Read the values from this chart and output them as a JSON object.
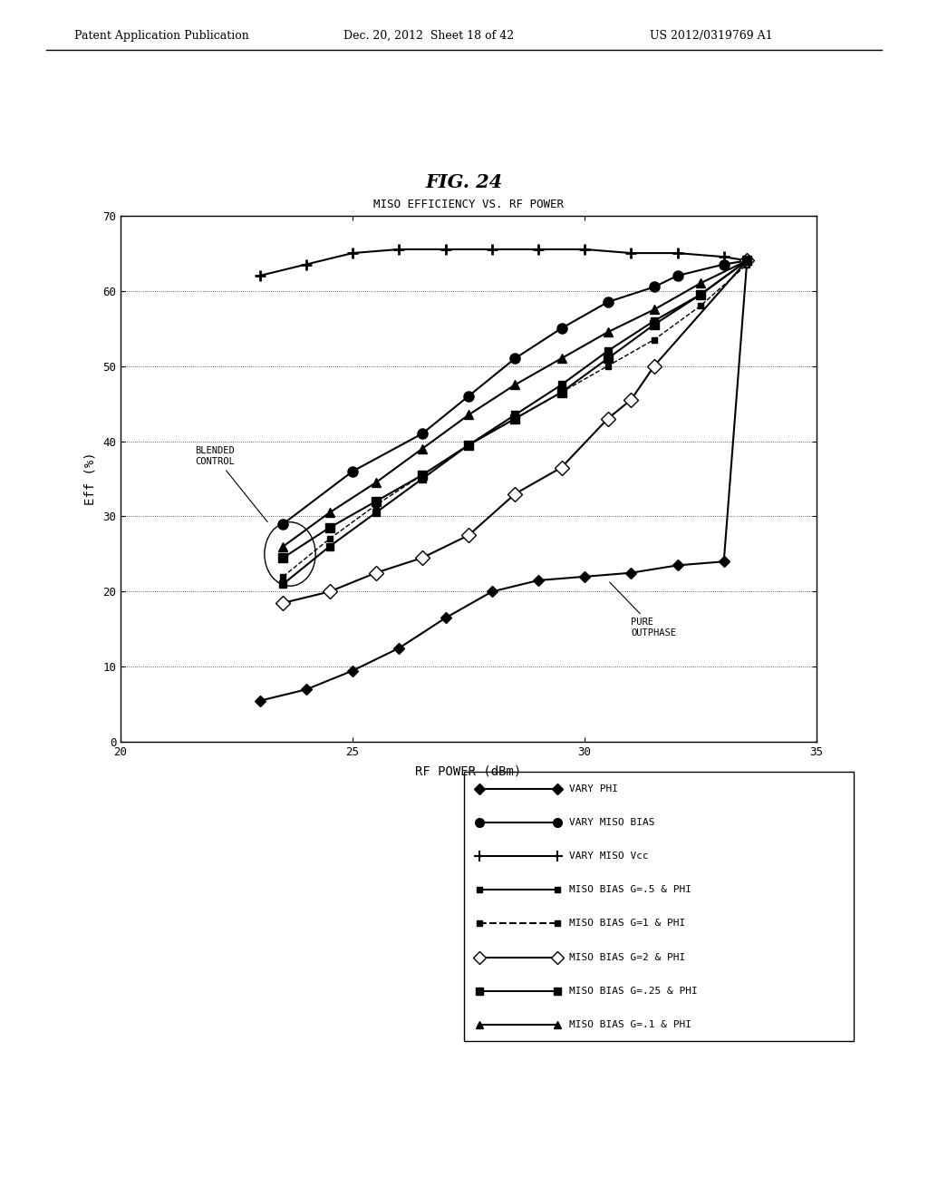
{
  "title": "FIG. 24",
  "subtitle": "MISO EFFICIENCY VS. RF POWER",
  "xlabel": "RF POWER (dBm)",
  "ylabel": "Eff (%)",
  "xlim": [
    20,
    35
  ],
  "ylim": [
    0,
    70
  ],
  "xticks": [
    20,
    25,
    30,
    35
  ],
  "yticks": [
    0,
    10,
    20,
    30,
    40,
    50,
    60,
    70
  ],
  "header_left": "Patent Application Publication",
  "header_center": "Dec. 20, 2012  Sheet 18 of 42",
  "header_right": "US 2012/0319769 A1",
  "series": [
    {
      "label": "VARY PHI",
      "marker": "D",
      "markersize": 6,
      "color": "black",
      "linewidth": 1.5,
      "fillstyle": "full",
      "linestyle": "-",
      "x": [
        23.0,
        24.0,
        25.0,
        26.0,
        27.0,
        28.0,
        29.0,
        30.0,
        31.0,
        32.0,
        33.0,
        33.5
      ],
      "y": [
        5.5,
        7.0,
        9.5,
        12.5,
        16.5,
        20.0,
        21.5,
        22.0,
        22.5,
        23.5,
        24.0,
        64.0
      ]
    },
    {
      "label": "VARY MISO BIAS",
      "marker": "o",
      "markersize": 8,
      "color": "black",
      "linewidth": 1.5,
      "fillstyle": "full",
      "linestyle": "-",
      "x": [
        23.5,
        25.0,
        26.5,
        27.5,
        28.5,
        29.5,
        30.5,
        31.5,
        32.0,
        33.0,
        33.5
      ],
      "y": [
        29.0,
        36.0,
        41.0,
        46.0,
        51.0,
        55.0,
        58.5,
        60.5,
        62.0,
        63.5,
        64.0
      ]
    },
    {
      "label": "VARY MISO Vcc",
      "marker": "+",
      "markersize": 9,
      "color": "black",
      "linewidth": 1.5,
      "fillstyle": "full",
      "linestyle": "-",
      "x": [
        23.0,
        24.0,
        25.0,
        26.0,
        27.0,
        28.0,
        29.0,
        30.0,
        31.0,
        32.0,
        33.0,
        33.5
      ],
      "y": [
        62.0,
        63.5,
        65.0,
        65.5,
        65.5,
        65.5,
        65.5,
        65.5,
        65.0,
        65.0,
        64.5,
        64.0
      ]
    },
    {
      "label": "MISO BIAS G=.5 & PHI",
      "marker": "s",
      "markersize": 6,
      "color": "black",
      "linewidth": 1.5,
      "fillstyle": "full",
      "linestyle": "-",
      "x": [
        23.5,
        24.5,
        25.5,
        26.5,
        27.5,
        28.5,
        29.5,
        30.5,
        31.5,
        32.5,
        33.5
      ],
      "y": [
        21.0,
        26.0,
        30.5,
        35.0,
        39.5,
        43.5,
        47.5,
        52.0,
        56.0,
        59.5,
        64.0
      ]
    },
    {
      "label": "MISO BIAS G=1 & PHI",
      "marker": "s",
      "markersize": 5,
      "color": "black",
      "linewidth": 1.0,
      "fillstyle": "full",
      "linestyle": "--",
      "x": [
        23.5,
        24.5,
        25.5,
        26.5,
        27.5,
        28.5,
        29.5,
        30.5,
        31.5,
        32.5,
        33.5
      ],
      "y": [
        22.0,
        27.0,
        31.5,
        35.5,
        39.5,
        43.0,
        46.5,
        50.0,
        53.5,
        58.0,
        63.5
      ]
    },
    {
      "label": "MISO BIAS G=2 & PHI",
      "marker": "D",
      "markersize": 8,
      "color": "black",
      "linewidth": 1.5,
      "fillstyle": "none",
      "linestyle": "-",
      "x": [
        23.5,
        24.5,
        25.5,
        26.5,
        27.5,
        28.5,
        29.5,
        30.5,
        31.0,
        31.5,
        33.5
      ],
      "y": [
        18.5,
        20.0,
        22.5,
        24.5,
        27.5,
        33.0,
        36.5,
        43.0,
        45.5,
        50.0,
        64.0
      ]
    },
    {
      "label": "MISO BIAS G=.25 & PHI",
      "marker": "s",
      "markersize": 7,
      "color": "black",
      "linewidth": 1.5,
      "fillstyle": "full",
      "linestyle": "-",
      "x": [
        23.5,
        24.5,
        25.5,
        26.5,
        27.5,
        28.5,
        29.5,
        30.5,
        31.5,
        32.5,
        33.5
      ],
      "y": [
        24.5,
        28.5,
        32.0,
        35.5,
        39.5,
        43.0,
        46.5,
        51.0,
        55.5,
        59.5,
        64.0
      ]
    },
    {
      "label": "MISO BIAS G=.1 & PHI",
      "marker": "^",
      "markersize": 7,
      "color": "black",
      "linewidth": 1.5,
      "fillstyle": "full",
      "linestyle": "-",
      "x": [
        23.5,
        24.5,
        25.5,
        26.5,
        27.5,
        28.5,
        29.5,
        30.5,
        31.5,
        32.5,
        33.5
      ],
      "y": [
        26.0,
        30.5,
        34.5,
        39.0,
        43.5,
        47.5,
        51.0,
        54.5,
        57.5,
        61.0,
        64.0
      ]
    }
  ]
}
